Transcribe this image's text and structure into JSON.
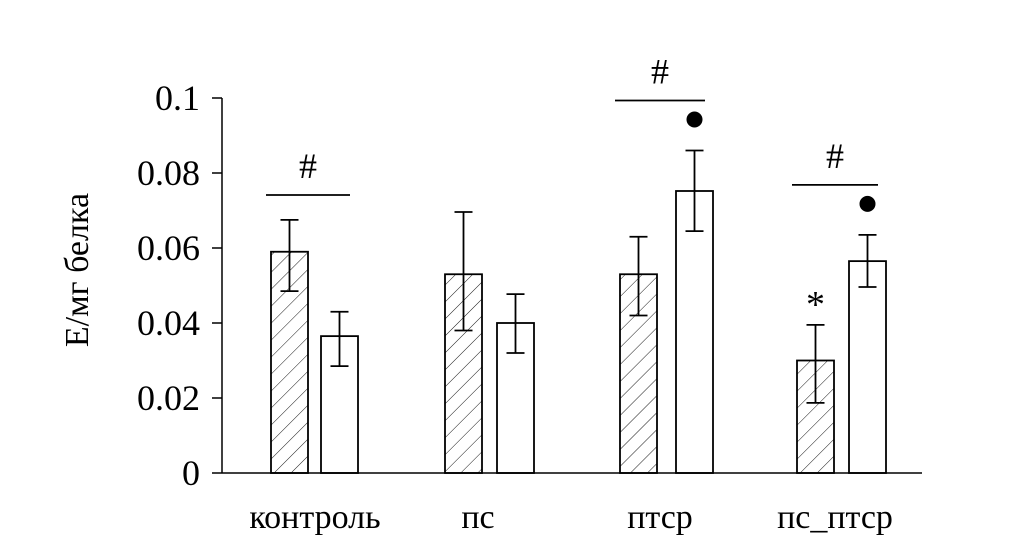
{
  "chart_data": {
    "type": "bar",
    "title": "",
    "xlabel": "",
    "ylabel": "Е/мг белка",
    "ylim": [
      0,
      0.1
    ],
    "yticks": [
      "0",
      "0.02",
      "0.04",
      "0.06",
      "0.08",
      "0.1"
    ],
    "grid": false,
    "categories": [
      "контроль",
      "пс",
      "птср",
      "пс_птср"
    ],
    "series": [
      {
        "pattern": "hatched",
        "values": [
          0.059,
          0.053,
          0.053,
          0.03
        ],
        "err_low": [
          0.0485,
          0.038,
          0.042,
          0.0187
        ],
        "err_high": [
          0.0675,
          0.0696,
          0.063,
          0.0395
        ]
      },
      {
        "pattern": "open",
        "values": [
          0.0365,
          0.04,
          0.0752,
          0.0565
        ],
        "err_low": [
          0.0285,
          0.032,
          0.0645,
          0.0496
        ],
        "err_high": [
          0.043,
          0.0477,
          0.086,
          0.0635
        ]
      }
    ],
    "annotations": {
      "group_marks": [
        "#",
        "",
        "#",
        "#"
      ],
      "open_bar_marks": [
        "",
        "",
        "●",
        "●"
      ],
      "hatched_bar_marks": [
        "",
        "",
        "",
        "*"
      ]
    },
    "colors": {
      "bar_fill": "#ffffff",
      "stroke": "#000000"
    }
  }
}
